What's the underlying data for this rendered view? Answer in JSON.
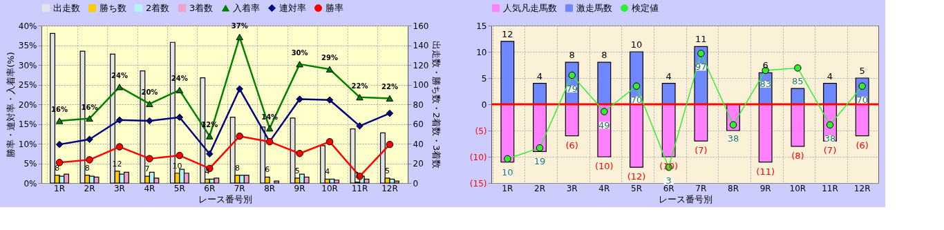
{
  "chart_data": [
    {
      "type": "bar",
      "categories": [
        "1R",
        "2R",
        "3R",
        "4R",
        "5R",
        "6R",
        "7R",
        "8R",
        "9R",
        "10R",
        "11R",
        "12R"
      ],
      "xlabel": "レース番号別",
      "ylabel": "勝率・連対率・入着率(%)",
      "y2label": "出走数・勝ち数・2着数・3着数",
      "ylim": [
        0,
        40
      ],
      "yticks": [
        {
          "value": 0,
          "label": "0%"
        },
        {
          "value": 5,
          "label": "5%"
        },
        {
          "value": 10,
          "label": "10%"
        },
        {
          "value": 15,
          "label": "15%"
        },
        {
          "value": 20,
          "label": "20%"
        },
        {
          "value": 25,
          "label": "25%"
        },
        {
          "value": 30,
          "label": "30%"
        },
        {
          "value": 35,
          "label": "35%"
        },
        {
          "value": 40,
          "label": "40%"
        }
      ],
      "y2lim": [
        0,
        160
      ],
      "y2ticks": [
        0,
        20,
        40,
        60,
        80,
        100,
        120,
        140,
        160
      ],
      "grid": true,
      "legend": "top",
      "series": [
        {
          "name": "出走数",
          "axis": "y2",
          "color": "#e4e4e4",
          "values": [
            152,
            134,
            131,
            114,
            143,
            107,
            67,
            57,
            66,
            38,
            55,
            51
          ]
        },
        {
          "name": "勝ち数",
          "axis": "y2",
          "color": "#ffcc00",
          "values": [
            8,
            8,
            12,
            7,
            10,
            4,
            8,
            6,
            5,
            4,
            1,
            5
          ],
          "value_labels": [
            "8",
            "8",
            "12",
            "7",
            "10",
            "4",
            "8",
            "6",
            "5",
            "4",
            "1",
            "5"
          ]
        },
        {
          "name": "2着数",
          "axis": "y2",
          "color": "#b4f4f4",
          "values": [
            7,
            7,
            9,
            11,
            14,
            4,
            8,
            null,
            9,
            4,
            7,
            4
          ]
        },
        {
          "name": "3着数",
          "axis": "y2",
          "color": "#f4a0cc",
          "values": [
            9,
            6,
            11,
            5,
            10,
            5,
            8,
            2,
            6,
            3,
            4,
            2
          ]
        },
        {
          "name": "入着率",
          "type": "line",
          "marker": "triangle",
          "color": "#008000",
          "values": [
            15.8,
            16.4,
            24.4,
            20.1,
            23.6,
            11.9,
            37.1,
            13.9,
            30.2,
            28.9,
            21.8,
            21.5
          ],
          "value_labels": [
            "16%",
            "16%",
            "24%",
            "20%",
            "24%",
            "12%",
            "37%",
            "14%",
            "30%",
            "29%",
            "22%",
            "22%"
          ]
        },
        {
          "name": "連対率",
          "type": "line",
          "marker": "diamond",
          "color": "#000080",
          "values": [
            9.8,
            11.1,
            16.0,
            15.8,
            16.7,
            7.4,
            23.9,
            10.5,
            21.3,
            21.1,
            14.5,
            17.7
          ]
        },
        {
          "name": "勝率",
          "type": "line",
          "marker": "circle",
          "color": "#ff0000",
          "values": [
            5.2,
            5.9,
            9.2,
            6.2,
            7.0,
            3.7,
            11.9,
            10.5,
            7.5,
            10.5,
            1.7,
            9.8
          ]
        }
      ]
    },
    {
      "type": "bar",
      "stacked": true,
      "categories": [
        "1R",
        "2R",
        "3R",
        "4R",
        "5R",
        "6R",
        "7R",
        "8R",
        "9R",
        "10R",
        "11R",
        "12R"
      ],
      "xlabel": "レース番号別",
      "ylim": [
        -15,
        15
      ],
      "yticks": [
        15,
        10,
        5,
        0,
        {
          "value": -5,
          "label": "(5)"
        },
        {
          "value": -10,
          "label": "(10)"
        },
        {
          "value": -15,
          "label": "(15)"
        }
      ],
      "y2lim": [
        -10,
        120
      ],
      "grid": true,
      "legend": "top",
      "ref_lines": [
        {
          "axis": "y",
          "value": 0,
          "color": "#ff0000"
        }
      ],
      "series": [
        {
          "name": "人気凡走馬数",
          "color": "#ff80ff",
          "values": [
            -11,
            -9,
            -6,
            -10,
            -12,
            -10,
            -7,
            -5,
            -11,
            -8,
            -7,
            -6
          ],
          "value_labels": [
            null,
            null,
            "(6)",
            "(10)",
            "(12)",
            "(10)",
            "(7)",
            null,
            "(11)",
            "(8)",
            "(7)",
            "(6)"
          ]
        },
        {
          "name": "激走馬数",
          "color": "#7088ff",
          "values": [
            12,
            4,
            8,
            8,
            10,
            4,
            11,
            null,
            6,
            3,
            4,
            5
          ],
          "value_labels": [
            "12",
            "4",
            "8",
            "8",
            "10",
            "4",
            "11",
            null,
            "6",
            null,
            "4",
            "5"
          ]
        },
        {
          "name": "検定値",
          "type": "line",
          "axis": "y2",
          "marker": "circle",
          "color": "#33ee33",
          "values": [
            10,
            19,
            79,
            49,
            70,
            3,
            97,
            38,
            83,
            85,
            38,
            70
          ],
          "value_labels": [
            "10",
            "19",
            "79",
            "49",
            "70",
            "3",
            "97",
            "38",
            "83",
            "85",
            "38",
            "70"
          ]
        }
      ]
    }
  ]
}
